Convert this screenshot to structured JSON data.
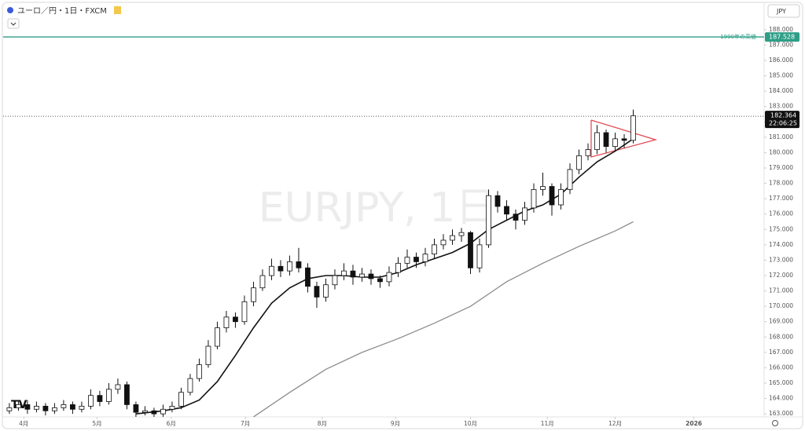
{
  "header": {
    "title": "ユーロ／円・1日・FXCM",
    "currency": "JPY",
    "watermark": "EURJPY, 1日"
  },
  "chart_data": {
    "type": "candlestick",
    "x": [
      0,
      1,
      2,
      3,
      4,
      5,
      6,
      7,
      8,
      9,
      10,
      11,
      12,
      13,
      14,
      15,
      16,
      17,
      18,
      19,
      20,
      21,
      22,
      23,
      24,
      25,
      26,
      27,
      28,
      29,
      30,
      31,
      32,
      33,
      34,
      35,
      36,
      37,
      38,
      39,
      40,
      41,
      42,
      43,
      44,
      45,
      46,
      47,
      48,
      49,
      50,
      51,
      52,
      53,
      54,
      55,
      56,
      57,
      58,
      59,
      60,
      61,
      62,
      63,
      64,
      65,
      66,
      67,
      68,
      69
    ],
    "open": [
      163.2,
      163.4,
      163.6,
      163.3,
      163.5,
      163.2,
      163.4,
      163.6,
      163.3,
      163.5,
      164.2,
      163.8,
      164.6,
      164.9,
      163.6,
      163.1,
      163.2,
      163.0,
      163.3,
      163.5,
      164.4,
      165.3,
      166.2,
      167.4,
      168.6,
      169.3,
      169.0,
      170.3,
      171.2,
      172.0,
      172.6,
      172.3,
      172.9,
      172.5,
      171.3,
      170.6,
      171.4,
      172.0,
      172.3,
      171.9,
      172.1,
      171.8,
      171.6,
      172.2,
      172.8,
      173.2,
      172.9,
      173.4,
      174.0,
      174.3,
      174.6,
      174.8,
      172.5,
      174.0,
      177.2,
      176.5,
      176.0,
      175.6,
      176.4,
      177.6,
      177.8,
      176.6,
      177.6,
      178.9,
      179.8,
      180.2,
      181.3,
      180.4,
      180.9,
      180.8
    ],
    "high": [
      163.7,
      163.9,
      163.9,
      163.8,
      163.7,
      163.7,
      163.9,
      163.8,
      163.8,
      164.6,
      164.5,
      165.0,
      165.3,
      165.1,
      163.8,
      163.5,
      163.4,
      163.6,
      163.8,
      164.7,
      165.6,
      166.6,
      167.8,
      169.0,
      169.7,
      169.6,
      170.7,
      171.6,
      172.4,
      173.1,
      173.0,
      173.3,
      173.8,
      172.8,
      171.6,
      171.8,
      172.4,
      172.8,
      172.7,
      172.5,
      172.4,
      172.0,
      172.6,
      173.2,
      173.7,
      173.5,
      173.8,
      174.4,
      174.7,
      175.0,
      175.1,
      174.9,
      174.4,
      177.6,
      177.5,
      176.9,
      176.3,
      176.8,
      178.0,
      178.7,
      178.0,
      178.0,
      179.3,
      180.2,
      180.6,
      181.8,
      181.5,
      181.3,
      181.2,
      182.8
    ],
    "low": [
      163.0,
      163.2,
      163.0,
      163.1,
      162.9,
      163.0,
      163.2,
      163.0,
      163.1,
      163.3,
      163.5,
      163.6,
      164.3,
      163.3,
      162.8,
      162.9,
      162.8,
      162.8,
      163.1,
      163.3,
      164.2,
      165.1,
      166.0,
      167.2,
      168.3,
      168.6,
      168.8,
      170.0,
      171.0,
      171.7,
      171.9,
      172.0,
      172.2,
      170.9,
      169.9,
      170.3,
      171.1,
      171.7,
      171.4,
      171.6,
      171.4,
      171.2,
      171.3,
      171.9,
      172.5,
      172.5,
      172.6,
      173.1,
      173.7,
      174.0,
      174.2,
      172.1,
      172.2,
      173.8,
      176.1,
      175.6,
      175.0,
      175.3,
      176.1,
      177.2,
      175.9,
      176.3,
      177.3,
      178.6,
      179.5,
      179.9,
      180.0,
      180.1,
      180.3,
      180.6
    ],
    "close": [
      163.4,
      163.6,
      163.3,
      163.5,
      163.2,
      163.4,
      163.6,
      163.3,
      163.5,
      164.2,
      163.8,
      164.6,
      164.9,
      163.6,
      163.1,
      163.2,
      163.0,
      163.3,
      163.5,
      164.4,
      165.3,
      166.2,
      167.4,
      168.6,
      169.3,
      169.0,
      170.3,
      171.2,
      172.0,
      172.6,
      172.3,
      172.9,
      172.5,
      171.3,
      170.6,
      171.4,
      172.0,
      172.3,
      171.9,
      172.1,
      171.8,
      171.6,
      172.2,
      172.8,
      173.2,
      172.9,
      173.4,
      174.0,
      174.3,
      174.6,
      174.8,
      172.5,
      174.0,
      177.2,
      176.5,
      176.0,
      175.6,
      176.4,
      177.6,
      177.8,
      176.6,
      177.6,
      178.9,
      179.8,
      180.2,
      181.3,
      180.4,
      180.9,
      180.8,
      182.4
    ],
    "lines": [
      {
        "color": "#111111",
        "x": [
          14,
          17,
          19,
          21,
          23,
          25,
          27,
          29,
          31,
          33,
          35,
          37,
          39,
          41,
          43,
          45,
          47,
          49,
          51,
          53,
          55,
          57,
          59,
          61,
          63,
          65,
          67,
          69
        ],
        "values": [
          163.0,
          163.2,
          163.4,
          163.9,
          165.1,
          166.8,
          168.6,
          170.2,
          171.2,
          171.8,
          172.0,
          172.0,
          171.9,
          171.9,
          172.2,
          172.7,
          173.1,
          173.5,
          174.1,
          175.0,
          175.6,
          176.2,
          176.6,
          177.3,
          178.4,
          179.4,
          180.1,
          180.9
        ]
      },
      {
        "color": "#8c8c8c",
        "x": [
          27,
          31,
          35,
          39,
          43,
          47,
          51,
          55,
          59,
          63,
          67,
          69
        ],
        "values": [
          162.8,
          164.4,
          165.9,
          167.0,
          167.9,
          168.9,
          170.0,
          171.6,
          172.8,
          173.9,
          174.9,
          175.5
        ]
      }
    ],
    "high_line": {
      "value": 187.528,
      "label": "187.528",
      "text": "1990年の高値",
      "color": "#2e9e86"
    },
    "last_price": {
      "value": 182.364,
      "label": "182.364",
      "time": "22:06:25"
    },
    "xlim": [
      -0.6,
      83.3
    ],
    "ylim": [
      162.6,
      188.4
    ],
    "xticks": [
      {
        "value": 1.6,
        "label": "4月"
      },
      {
        "value": 9.7,
        "label": "5月"
      },
      {
        "value": 17.9,
        "label": "6月"
      },
      {
        "value": 26.1,
        "label": "7月"
      },
      {
        "value": 34.6,
        "label": "8月"
      },
      {
        "value": 42.7,
        "label": "9月"
      },
      {
        "value": 51.0,
        "label": "10月"
      },
      {
        "value": 59.5,
        "label": "11月"
      },
      {
        "value": 67.0,
        "label": "12月"
      },
      {
        "value": 75.7,
        "label": "2026"
      }
    ],
    "yticks": [
      {
        "value": 163,
        "label": "163.000"
      },
      {
        "value": 164,
        "label": "164.000"
      },
      {
        "value": 165,
        "label": "165.000"
      },
      {
        "value": 166,
        "label": "166.000"
      },
      {
        "value": 167,
        "label": "167.000"
      },
      {
        "value": 168,
        "label": "168.000"
      },
      {
        "value": 169,
        "label": "169.000"
      },
      {
        "value": 170,
        "label": "170.000"
      },
      {
        "value": 171,
        "label": "171.000"
      },
      {
        "value": 172,
        "label": "172.000"
      },
      {
        "value": 173,
        "label": "173.000"
      },
      {
        "value": 174,
        "label": "174.000"
      },
      {
        "value": 175,
        "label": "175.000"
      },
      {
        "value": 176,
        "label": "176.000"
      },
      {
        "value": 177,
        "label": "177.000"
      },
      {
        "value": 178,
        "label": "178.000"
      },
      {
        "value": 179,
        "label": "179.000"
      },
      {
        "value": 180,
        "label": "180.000"
      },
      {
        "value": 181,
        "label": "181.000"
      },
      {
        "value": 182,
        "label": "182.000"
      },
      {
        "value": 183,
        "label": "183.000"
      },
      {
        "value": 184,
        "label": "184.000"
      },
      {
        "value": 185,
        "label": "185.000"
      },
      {
        "value": 186,
        "label": "186.000"
      },
      {
        "value": 187,
        "label": "187.000"
      },
      {
        "value": 188,
        "label": "188.000"
      }
    ]
  }
}
